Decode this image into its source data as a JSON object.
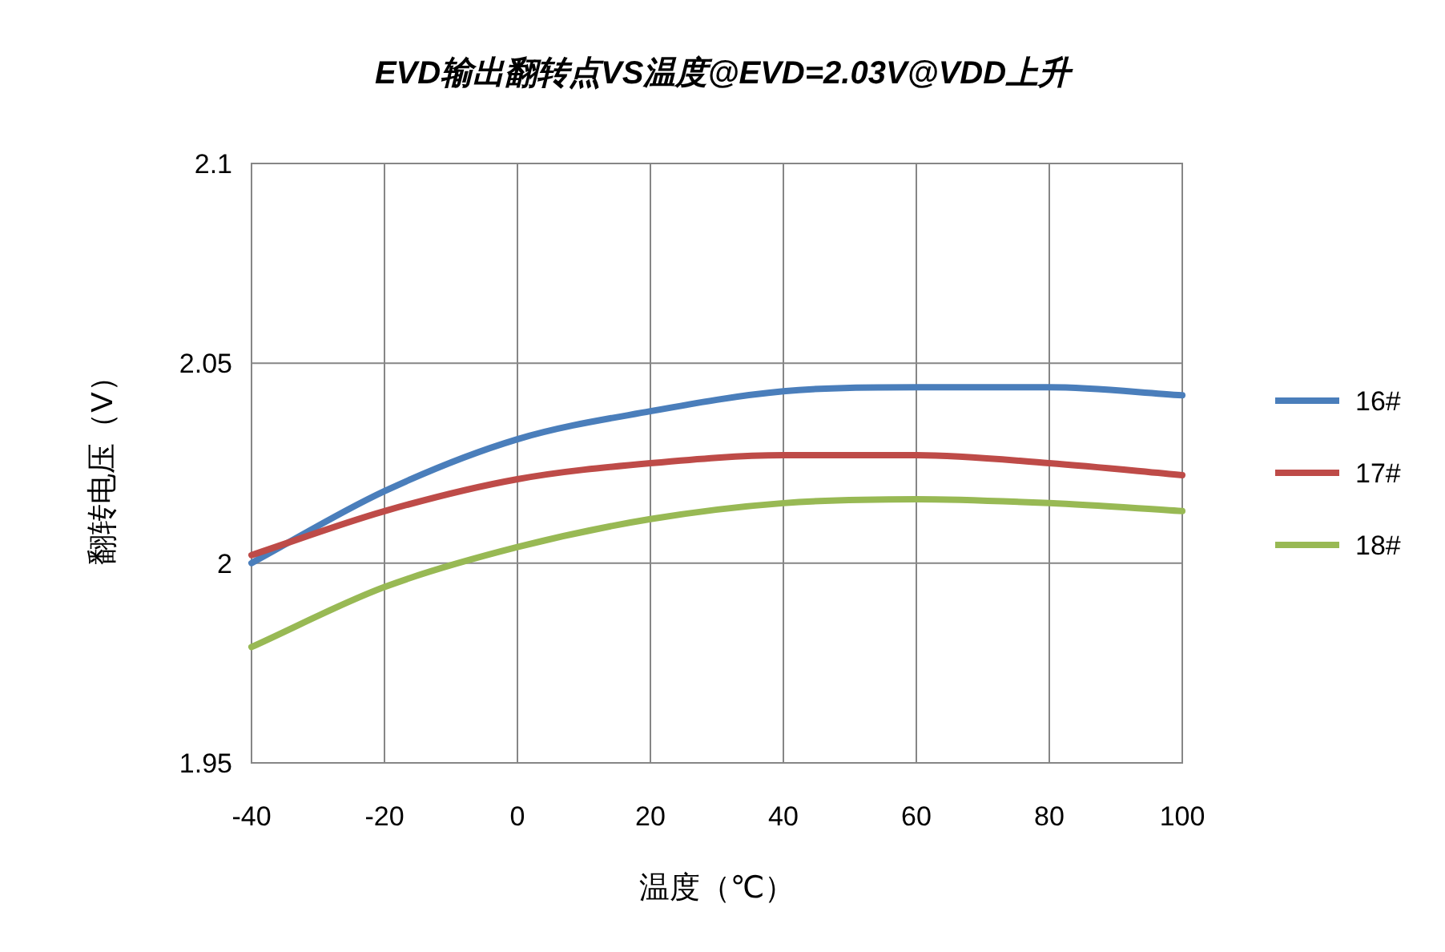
{
  "chart_data": {
    "type": "line",
    "title": "EVD输出翻转点VS温度@EVD=2.03V@VDD上升",
    "xlabel": "温度（℃）",
    "ylabel": "翻转电压（V）",
    "x": [
      -40,
      -20,
      0,
      20,
      40,
      60,
      80,
      100
    ],
    "series": [
      {
        "name": "16#",
        "color": "#4a7ebb",
        "values": [
          2.0,
          2.018,
          2.031,
          2.038,
          2.043,
          2.044,
          2.044,
          2.042
        ]
      },
      {
        "name": "17#",
        "color": "#be4b48",
        "values": [
          2.002,
          2.013,
          2.021,
          2.025,
          2.027,
          2.027,
          2.025,
          2.022
        ]
      },
      {
        "name": "18#",
        "color": "#98b954",
        "values": [
          1.979,
          1.994,
          2.004,
          2.011,
          2.015,
          2.016,
          2.015,
          2.013
        ]
      }
    ],
    "xlim": [
      -40,
      100
    ],
    "xticks": [
      -40,
      -20,
      0,
      20,
      40,
      60,
      80,
      100
    ],
    "ylim": [
      1.95,
      2.1
    ],
    "yticks": [
      1.95,
      2,
      2.05,
      2.1
    ],
    "grid": true,
    "legend": "right",
    "marker": "none",
    "line_style": "solid"
  }
}
